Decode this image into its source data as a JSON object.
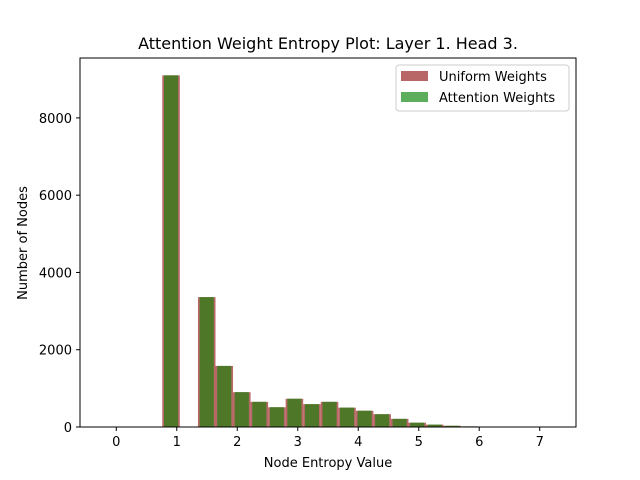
{
  "chart_data": {
    "type": "bar",
    "title": "Attention Weight Entropy Plot: Layer 1. Head 3.",
    "xlabel": "Node Entropy Value",
    "ylabel": "Number of Nodes",
    "xlim": [
      -0.6,
      7.6
    ],
    "ylim": [
      0,
      9550
    ],
    "xticks": [
      0,
      1,
      2,
      3,
      4,
      5,
      6,
      7
    ],
    "yticks": [
      0,
      2000,
      4000,
      6000,
      8000
    ],
    "bin_width": 0.29,
    "legend_position": "top-right",
    "series": [
      {
        "name": "Uniform Weights",
        "color": "#b96666",
        "x": [
          0.76,
          1.35,
          1.64,
          1.93,
          2.22,
          2.51,
          2.8,
          3.09,
          3.38,
          3.67,
          3.96,
          4.25,
          4.54,
          4.83,
          5.12,
          5.41,
          5.7,
          5.99
        ],
        "values": [
          9100,
          3360,
          1580,
          900,
          650,
          510,
          730,
          590,
          650,
          500,
          420,
          330,
          210,
          110,
          60,
          30,
          15,
          10
        ]
      },
      {
        "name": "Attention Weights",
        "color": "#5cad5c",
        "x": [
          0.76,
          1.35,
          1.64,
          1.93,
          2.22,
          2.51,
          2.8,
          3.09,
          3.38,
          3.67,
          3.96,
          4.25,
          4.54,
          4.83,
          5.12,
          5.41,
          5.7,
          5.99
        ],
        "values": [
          9100,
          3360,
          1580,
          900,
          650,
          510,
          730,
          590,
          650,
          500,
          420,
          330,
          210,
          110,
          60,
          30,
          15,
          10
        ]
      }
    ]
  }
}
